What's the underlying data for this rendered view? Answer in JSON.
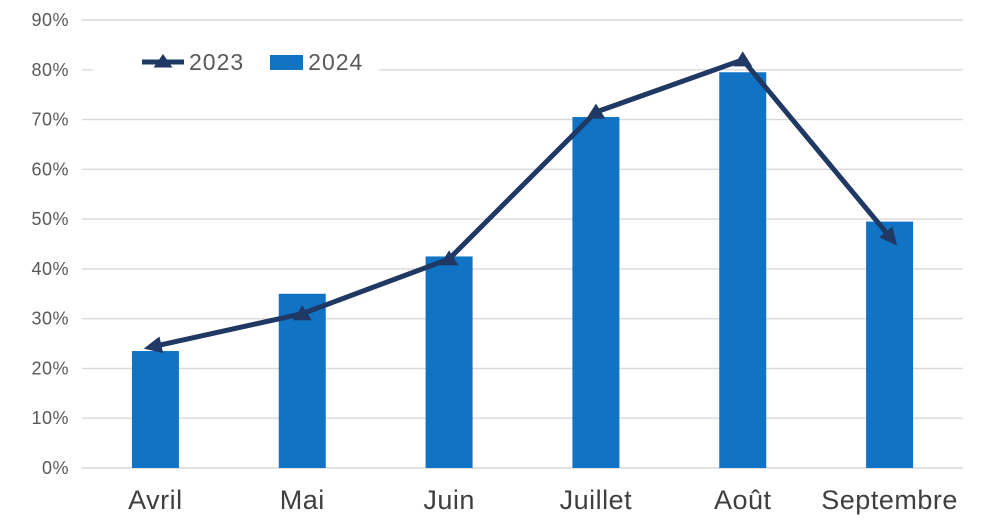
{
  "chart_data": {
    "type": "combo",
    "title": "",
    "categories": [
      "Avril",
      "Mai",
      "Juin",
      "Juillet",
      "Août",
      "Septembre"
    ],
    "series": [
      {
        "name": "2023",
        "type": "line",
        "color": "#1F3864",
        "values": [
          24.5,
          31,
          42,
          71.5,
          82,
          46.5
        ],
        "marker": "triangle",
        "line_ends": "arrowheads"
      },
      {
        "name": "2024",
        "type": "bar",
        "color": "#1173C4",
        "values": [
          23.5,
          35,
          42.5,
          70.5,
          79.5,
          49.5
        ]
      }
    ],
    "y_axis": {
      "min": 0,
      "max": 90,
      "step": 10,
      "suffix": "%",
      "tick_labels": [
        "0%",
        "10%",
        "20%",
        "30%",
        "40%",
        "50%",
        "60%",
        "70%",
        "80%",
        "90%"
      ]
    },
    "x_axis_labels": [
      "Avril",
      "Mai",
      "Juin",
      "Juillet",
      "Août",
      "Septembre"
    ],
    "grid": "horizontal",
    "legend_position": "top-left",
    "colors": {
      "grid": "#D9D9D9",
      "tick_label": "#595959",
      "category_label": "#3F3F3F",
      "background": "#FFFFFF"
    }
  }
}
